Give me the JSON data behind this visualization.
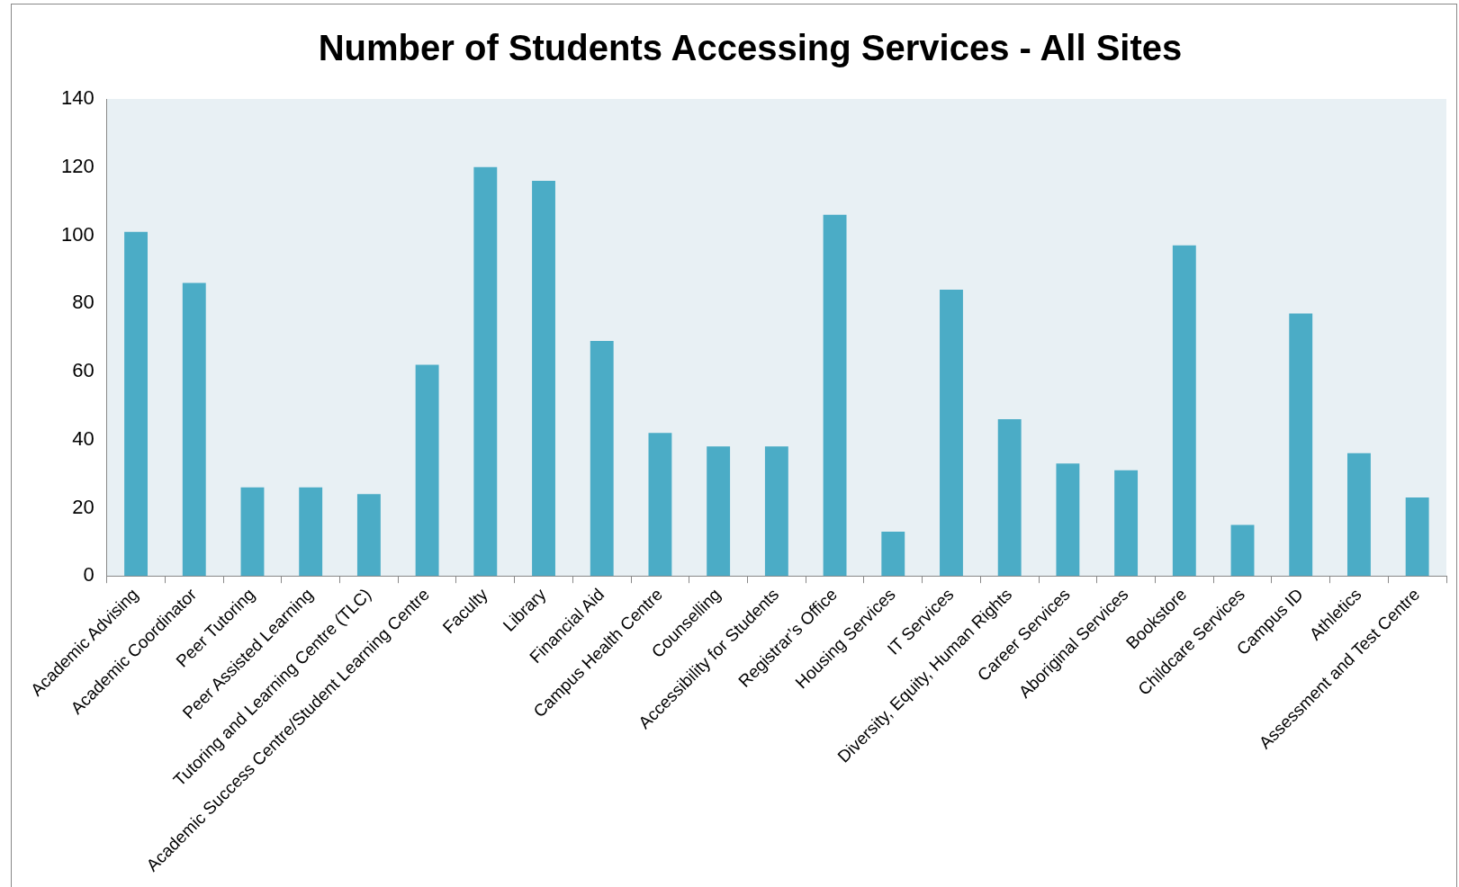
{
  "chart_data": {
    "type": "bar",
    "title": "Number of Students Accessing Services - All Sites",
    "categories": [
      "Academic Advising",
      "Academic Coordinator",
      "Peer Tutoring",
      "Peer Assisted Learning",
      "Tutoring and Learning Centre (TLC)",
      "Academic Success Centre/Student Learning Centre",
      "Faculty",
      "Library",
      "Financial Aid",
      "Campus Health Centre",
      "Counselling",
      "Accessibility for Students",
      "Registrar’s Office",
      "Housing Services",
      "IT Services",
      "Diversity, Equity, Human Rights",
      "Career Services",
      "Aboriginal Services",
      "Bookstore",
      "Childcare Services",
      "Campus ID",
      "Athletics",
      "Assessment and Test Centre"
    ],
    "values": [
      101,
      86,
      26,
      26,
      24,
      62,
      120,
      116,
      69,
      42,
      38,
      38,
      106,
      13,
      84,
      46,
      33,
      31,
      97,
      15,
      77,
      36,
      23
    ],
    "color": "#4bacc6",
    "ylim": [
      0,
      140
    ],
    "yticks": [
      0,
      20,
      40,
      60,
      80,
      100,
      120,
      140
    ],
    "grid": false,
    "legend": false
  }
}
